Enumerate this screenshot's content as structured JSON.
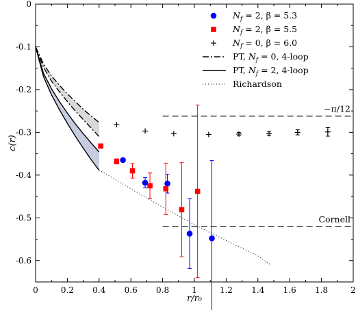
{
  "chart_data": {
    "type": "scatter",
    "xlabel": "r/r₀",
    "ylabel": "c(r)",
    "xlim": [
      0,
      2
    ],
    "ylim": [
      -0.65,
      0
    ],
    "xticks": [
      "0",
      "0.2",
      "0.4",
      "0.6",
      "0.8",
      "1",
      "1.2",
      "1.4",
      "1.6",
      "1.8",
      "2"
    ],
    "yticks": [
      "0",
      "-0.1",
      "-0.2",
      "-0.3",
      "-0.4",
      "-0.5",
      "-0.6"
    ],
    "legend_position": "top-right",
    "series": [
      {
        "name": "N_f = 2, β = 5.3",
        "label_parts": [
          "N",
          "f",
          " = 2, β = 5.3"
        ],
        "marker": "circle",
        "color": "#0000ff",
        "points": [
          {
            "x": 0.55,
            "y": -0.365,
            "err": 0.0
          },
          {
            "x": 0.69,
            "y": -0.418,
            "err": 0.012
          },
          {
            "x": 0.83,
            "y": -0.42,
            "err": 0.022
          },
          {
            "x": 0.97,
            "y": -0.537,
            "err": 0.082
          },
          {
            "x": 1.11,
            "y": -0.548,
            "err": 0.182
          }
        ]
      },
      {
        "name": "N_f = 2, β = 5.5",
        "label_parts": [
          "N",
          "f",
          " = 2, β = 5.5"
        ],
        "marker": "square",
        "color": "#ff0000",
        "points": [
          {
            "x": 0.41,
            "y": -0.332,
            "err": 0.0
          },
          {
            "x": 0.51,
            "y": -0.368,
            "err": 0.006
          },
          {
            "x": 0.61,
            "y": -0.39,
            "err": 0.017
          },
          {
            "x": 0.72,
            "y": -0.425,
            "err": 0.03
          },
          {
            "x": 0.82,
            "y": -0.432,
            "err": 0.06
          },
          {
            "x": 0.92,
            "y": -0.481,
            "err": 0.11
          },
          {
            "x": 1.02,
            "y": -0.438,
            "err": 0.202
          }
        ]
      },
      {
        "name": "N_f = 0, β = 6.0",
        "label_parts": [
          "N",
          "f",
          " = 0, β = 6.0"
        ],
        "marker": "plus",
        "color": "#000000",
        "points": [
          {
            "x": 0.51,
            "y": -0.282,
            "err": 0.0
          },
          {
            "x": 0.69,
            "y": -0.297,
            "err": 0.0
          },
          {
            "x": 0.87,
            "y": -0.303,
            "err": 0.0
          },
          {
            "x": 1.09,
            "y": -0.305,
            "err": 0.0
          },
          {
            "x": 1.28,
            "y": -0.304,
            "err": 0.004
          },
          {
            "x": 1.47,
            "y": -0.303,
            "err": 0.005
          },
          {
            "x": 1.65,
            "y": -0.3,
            "err": 0.006
          },
          {
            "x": 1.84,
            "y": -0.299,
            "err": 0.01
          }
        ]
      }
    ],
    "curves": [
      {
        "name": "PT, N_f = 0, 4-loop",
        "label_parts": [
          "PT, ",
          "N",
          "f",
          " = 0, 4-loop"
        ],
        "style": "dashdot",
        "band_fill": "#d9d9d9",
        "upper": [
          [
            0,
            -0.1
          ],
          [
            0.05,
            -0.14
          ],
          [
            0.1,
            -0.168
          ],
          [
            0.15,
            -0.19
          ],
          [
            0.2,
            -0.21
          ],
          [
            0.25,
            -0.228
          ],
          [
            0.3,
            -0.246
          ],
          [
            0.35,
            -0.262
          ],
          [
            0.4,
            -0.277
          ]
        ],
        "lower": [
          [
            0,
            -0.1
          ],
          [
            0.05,
            -0.148
          ],
          [
            0.1,
            -0.18
          ],
          [
            0.15,
            -0.205
          ],
          [
            0.2,
            -0.228
          ],
          [
            0.25,
            -0.25
          ],
          [
            0.3,
            -0.27
          ],
          [
            0.35,
            -0.29
          ],
          [
            0.4,
            -0.31
          ]
        ]
      },
      {
        "name": "PT, N_f = 2, 4-loop",
        "label_parts": [
          "PT, ",
          "N",
          "f",
          " = 2, 4-loop"
        ],
        "style": "solid",
        "band_fill": "#c8cce0",
        "upper": [
          [
            0,
            -0.1
          ],
          [
            0.05,
            -0.162
          ],
          [
            0.1,
            -0.198
          ],
          [
            0.15,
            -0.228
          ],
          [
            0.2,
            -0.255
          ],
          [
            0.25,
            -0.28
          ],
          [
            0.3,
            -0.303
          ],
          [
            0.35,
            -0.325
          ],
          [
            0.4,
            -0.346
          ]
        ],
        "lower": [
          [
            0,
            -0.1
          ],
          [
            0.05,
            -0.17
          ],
          [
            0.1,
            -0.212
          ],
          [
            0.15,
            -0.247
          ],
          [
            0.2,
            -0.279
          ],
          [
            0.25,
            -0.309
          ],
          [
            0.3,
            -0.337
          ],
          [
            0.35,
            -0.364
          ],
          [
            0.4,
            -0.389
          ]
        ]
      },
      {
        "name": "Richardson",
        "label_parts": [
          "Richardson"
        ],
        "style": "dotted",
        "points": [
          [
            0.4,
            -0.388
          ],
          [
            0.6,
            -0.432
          ],
          [
            0.8,
            -0.475
          ],
          [
            1.0,
            -0.516
          ],
          [
            1.2,
            -0.553
          ],
          [
            1.4,
            -0.589
          ],
          [
            1.48,
            -0.61
          ]
        ]
      }
    ],
    "reference_lines": [
      {
        "label": "−π/12",
        "y": -0.262,
        "x_start": 0.8,
        "x_end": 2.0,
        "style": "dashed"
      },
      {
        "label": "Cornell",
        "y": -0.52,
        "x_start": 0.8,
        "x_end": 2.0,
        "style": "dashed"
      }
    ]
  }
}
